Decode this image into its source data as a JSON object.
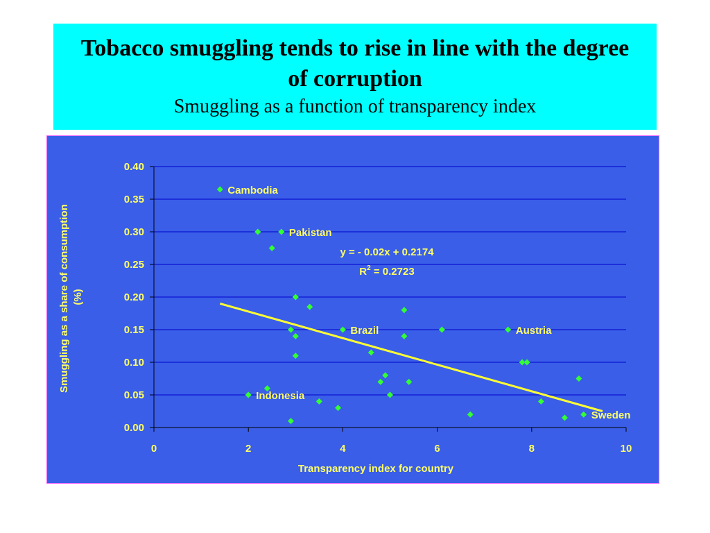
{
  "slide": {
    "title": "Tobacco smuggling tends to rise in line with the degree of corruption",
    "subtitle": "Smuggling as a function of transparency index"
  },
  "colors": {
    "title_bg": "#00ffff",
    "plot_bg": "#3a5ee8",
    "text": "#ffff66",
    "point": "#33ff33",
    "trendline": "#ffff33",
    "gridline": "#0000cc"
  },
  "chart_data": {
    "type": "scatter",
    "xlabel": "Transparency index for country",
    "ylabel": "Smuggling as a share of consumption (%)",
    "xlim": [
      0,
      10
    ],
    "ylim": [
      0,
      0.4
    ],
    "x_ticks": [
      "0",
      "2",
      "4",
      "6",
      "8",
      "10"
    ],
    "y_ticks": [
      "0.00",
      "0.05",
      "0.10",
      "0.15",
      "0.20",
      "0.25",
      "0.30",
      "0.35",
      "0.40"
    ],
    "grid": true,
    "points": [
      {
        "x": 1.4,
        "y": 0.365,
        "label": "Cambodia"
      },
      {
        "x": 2.2,
        "y": 0.3,
        "label": ""
      },
      {
        "x": 2.7,
        "y": 0.3,
        "label": "Pakistan"
      },
      {
        "x": 2.5,
        "y": 0.275,
        "label": ""
      },
      {
        "x": 3.0,
        "y": 0.2,
        "label": ""
      },
      {
        "x": 3.3,
        "y": 0.185,
        "label": ""
      },
      {
        "x": 2.9,
        "y": 0.15,
        "label": ""
      },
      {
        "x": 3.0,
        "y": 0.14,
        "label": ""
      },
      {
        "x": 3.0,
        "y": 0.11,
        "label": ""
      },
      {
        "x": 4.0,
        "y": 0.15,
        "label": "Brazil"
      },
      {
        "x": 2.0,
        "y": 0.05,
        "label": "Indonesia"
      },
      {
        "x": 2.4,
        "y": 0.06,
        "label": ""
      },
      {
        "x": 3.5,
        "y": 0.04,
        "label": ""
      },
      {
        "x": 3.9,
        "y": 0.03,
        "label": ""
      },
      {
        "x": 2.9,
        "y": 0.01,
        "label": ""
      },
      {
        "x": 4.6,
        "y": 0.115,
        "label": ""
      },
      {
        "x": 4.8,
        "y": 0.07,
        "label": ""
      },
      {
        "x": 4.9,
        "y": 0.08,
        "label": ""
      },
      {
        "x": 5.0,
        "y": 0.05,
        "label": ""
      },
      {
        "x": 5.3,
        "y": 0.18,
        "label": ""
      },
      {
        "x": 5.3,
        "y": 0.14,
        "label": ""
      },
      {
        "x": 5.4,
        "y": 0.07,
        "label": ""
      },
      {
        "x": 6.1,
        "y": 0.15,
        "label": ""
      },
      {
        "x": 6.7,
        "y": 0.02,
        "label": ""
      },
      {
        "x": 7.5,
        "y": 0.15,
        "label": "Austria"
      },
      {
        "x": 7.8,
        "y": 0.1,
        "label": ""
      },
      {
        "x": 7.9,
        "y": 0.1,
        "label": ""
      },
      {
        "x": 8.2,
        "y": 0.04,
        "label": ""
      },
      {
        "x": 8.7,
        "y": 0.015,
        "label": ""
      },
      {
        "x": 9.0,
        "y": 0.075,
        "label": ""
      },
      {
        "x": 9.1,
        "y": 0.02,
        "label": "Sweden"
      }
    ],
    "trendline": {
      "x_start": 1.4,
      "y_start": 0.19,
      "x_end": 9.5,
      "y_end": 0.025,
      "equation": "y = - 0.02x + 0.2174",
      "r2_prefix": "R",
      "r2_sup": "2",
      "r2_value": " = 0.2723"
    }
  }
}
